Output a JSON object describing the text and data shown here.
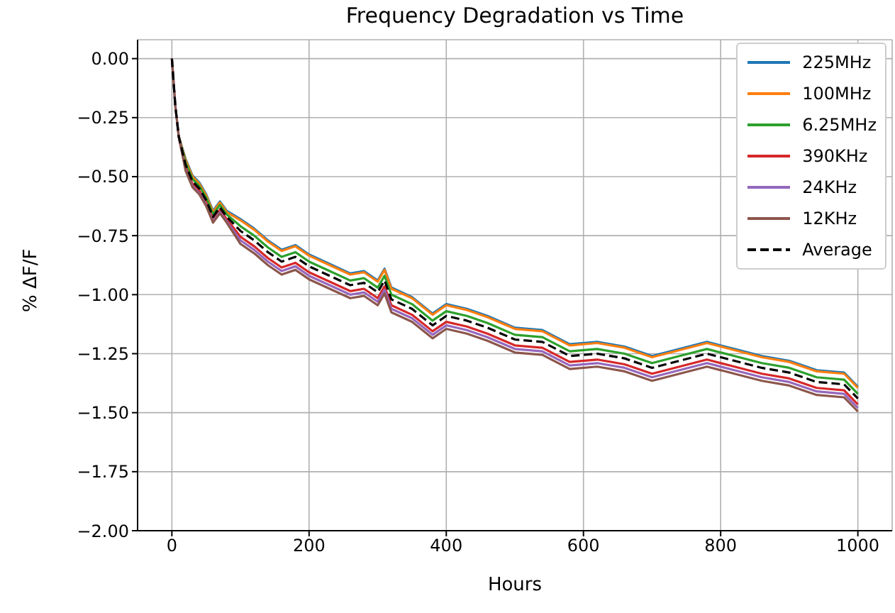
{
  "chart_data": {
    "type": "line",
    "title": "Frequency Degradation vs Time",
    "xlabel": "Hours",
    "ylabel": "% ΔF/F",
    "x": [
      0,
      5,
      10,
      20,
      30,
      40,
      50,
      60,
      70,
      80,
      100,
      120,
      140,
      160,
      180,
      200,
      230,
      260,
      280,
      300,
      310,
      320,
      350,
      380,
      400,
      430,
      460,
      500,
      540,
      580,
      620,
      660,
      700,
      740,
      780,
      820,
      860,
      900,
      940,
      980,
      1000
    ],
    "series": [
      {
        "name": "225MHz",
        "color": "#1f77b4",
        "values": [
          null,
          null,
          -0.33,
          -0.425,
          -0.495,
          -0.525,
          -0.575,
          -0.645,
          -0.605,
          -0.645,
          -0.68,
          -0.72,
          -0.77,
          -0.81,
          -0.79,
          -0.83,
          -0.87,
          -0.91,
          -0.9,
          -0.94,
          -0.89,
          -0.97,
          -1.01,
          -1.08,
          -1.04,
          -1.06,
          -1.09,
          -1.14,
          -1.15,
          -1.21,
          -1.2,
          -1.22,
          -1.26,
          -1.23,
          -1.2,
          -1.23,
          -1.26,
          -1.28,
          -1.32,
          -1.33,
          -1.39
        ]
      },
      {
        "name": "100MHz",
        "color": "#ff7f0e",
        "values": [
          null,
          null,
          -0.33,
          -0.43,
          -0.5,
          -0.53,
          -0.58,
          -0.65,
          -0.61,
          -0.65,
          -0.685,
          -0.725,
          -0.775,
          -0.815,
          -0.795,
          -0.835,
          -0.875,
          -0.915,
          -0.905,
          -0.945,
          -0.895,
          -0.975,
          -1.015,
          -1.085,
          -1.045,
          -1.065,
          -1.095,
          -1.145,
          -1.155,
          -1.215,
          -1.205,
          -1.225,
          -1.265,
          -1.235,
          -1.205,
          -1.235,
          -1.265,
          -1.285,
          -1.325,
          -1.335,
          -1.395
        ]
      },
      {
        "name": "6.25MHz",
        "color": "#2ca02c",
        "values": [
          null,
          null,
          -0.33,
          -0.44,
          -0.51,
          -0.54,
          -0.59,
          -0.66,
          -0.62,
          -0.66,
          -0.71,
          -0.75,
          -0.8,
          -0.84,
          -0.82,
          -0.86,
          -0.9,
          -0.94,
          -0.93,
          -0.97,
          -0.92,
          -1,
          -1.04,
          -1.11,
          -1.07,
          -1.09,
          -1.12,
          -1.17,
          -1.18,
          -1.24,
          -1.23,
          -1.25,
          -1.29,
          -1.26,
          -1.23,
          -1.26,
          -1.29,
          -1.31,
          -1.35,
          -1.36,
          -1.42
        ]
      },
      {
        "name": "390KHz",
        "color": "#d62728",
        "values": [
          null,
          null,
          -0.33,
          -0.46,
          -0.53,
          -0.56,
          -0.61,
          -0.68,
          -0.64,
          -0.68,
          -0.755,
          -0.795,
          -0.845,
          -0.885,
          -0.865,
          -0.905,
          -0.945,
          -0.985,
          -0.975,
          -1.015,
          -0.965,
          -1.045,
          -1.085,
          -1.155,
          -1.115,
          -1.135,
          -1.165,
          -1.215,
          -1.225,
          -1.285,
          -1.275,
          -1.295,
          -1.335,
          -1.305,
          -1.275,
          -1.305,
          -1.335,
          -1.355,
          -1.395,
          -1.405,
          -1.465
        ]
      },
      {
        "name": "24KHz",
        "color": "#9467bd",
        "values": [
          0,
          -0.2,
          -0.33,
          -0.47,
          -0.54,
          -0.57,
          -0.62,
          -0.69,
          -0.65,
          -0.69,
          -0.77,
          -0.81,
          -0.86,
          -0.9,
          -0.88,
          -0.92,
          -0.96,
          -1,
          -0.99,
          -1.03,
          -0.98,
          -1.06,
          -1.1,
          -1.17,
          -1.13,
          -1.15,
          -1.18,
          -1.23,
          -1.24,
          -1.3,
          -1.29,
          -1.31,
          -1.35,
          -1.32,
          -1.29,
          -1.32,
          -1.35,
          -1.37,
          -1.41,
          -1.42,
          -1.48
        ]
      },
      {
        "name": "12KHz",
        "color": "#8c564b",
        "values": [
          0,
          -0.2,
          -0.33,
          -0.475,
          -0.545,
          -0.575,
          -0.625,
          -0.695,
          -0.655,
          -0.695,
          -0.785,
          -0.825,
          -0.875,
          -0.915,
          -0.895,
          -0.935,
          -0.975,
          -1.015,
          -1.005,
          -1.045,
          -0.995,
          -1.075,
          -1.115,
          -1.185,
          -1.145,
          -1.165,
          -1.195,
          -1.245,
          -1.255,
          -1.315,
          -1.305,
          -1.325,
          -1.365,
          -1.335,
          -1.305,
          -1.335,
          -1.365,
          -1.385,
          -1.425,
          -1.435,
          -1.495
        ]
      },
      {
        "name": "Average",
        "color": "#000000",
        "line_style": "dashed",
        "values": [
          0,
          -0.2,
          -0.33,
          -0.45,
          -0.52,
          -0.55,
          -0.6,
          -0.67,
          -0.63,
          -0.67,
          -0.73,
          -0.77,
          -0.82,
          -0.86,
          -0.84,
          -0.88,
          -0.92,
          -0.96,
          -0.95,
          -0.99,
          -0.94,
          -1.02,
          -1.06,
          -1.13,
          -1.09,
          -1.11,
          -1.14,
          -1.19,
          -1.2,
          -1.26,
          -1.25,
          -1.27,
          -1.31,
          -1.28,
          -1.25,
          -1.28,
          -1.31,
          -1.33,
          -1.37,
          -1.38,
          -1.44
        ]
      }
    ],
    "xlim": [
      -50,
      1050
    ],
    "xticks": [
      0,
      200,
      400,
      600,
      800,
      1000
    ],
    "ylim": [
      -2,
      0.08
    ],
    "yticks": [
      {
        "value": 0,
        "label": "0.00"
      },
      {
        "value": -0.25,
        "label": "−0.25"
      },
      {
        "value": -0.5,
        "label": "−0.50"
      },
      {
        "value": -0.75,
        "label": "−0.75"
      },
      {
        "value": -1,
        "label": "−1.00"
      },
      {
        "value": -1.25,
        "label": "−1.25"
      },
      {
        "value": -1.5,
        "label": "−1.50"
      },
      {
        "value": -1.75,
        "label": "−1.75"
      },
      {
        "value": -2,
        "label": "−2.00"
      }
    ],
    "grid": true,
    "legend": "top right"
  }
}
